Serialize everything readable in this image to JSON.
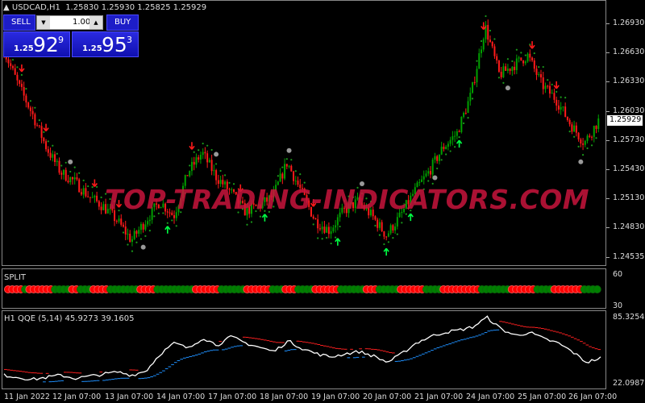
{
  "header": {
    "symbol": "USDCAD,H1",
    "ohlc": "1.25830 1.25930 1.25825 1.25929"
  },
  "trade_panel": {
    "sell_label": "SELL",
    "buy_label": "BUY",
    "lot": "1.00",
    "sell_prefix": "1.25",
    "sell_big": "92",
    "sell_small": "9",
    "buy_prefix": "1.25",
    "buy_big": "95",
    "buy_small": "3"
  },
  "watermark": "TOP-TRADING-INDICATORS.COM",
  "price_axis": [
    "1.26930",
    "1.26630",
    "1.26330",
    "1.26030",
    "1.25730",
    "1.25430",
    "1.25130",
    "1.24830",
    "1.24535"
  ],
  "current_price": "1.25929",
  "split": {
    "label": "SPLIT",
    "axis": [
      "60",
      "30"
    ],
    "sequence": "rrrrgrrrrrrggggrrgggrrrrgggggggrrrrgggggggggrrrrrrggggggrrrrrrgggrrrggggrrrrrrggggggrrrgggggrrrrrrggggrrrrrrrrrgggggggrrrrrrggggrrrrrrrgggg",
    "colors": {
      "red": "#ff0000",
      "green": "#008000"
    }
  },
  "qqe": {
    "label": "H1  QQE (5,14) 45.9273 39.1605",
    "axis": [
      "85.3254",
      "22.0987"
    ],
    "colors": {
      "main": "#ffffff",
      "signal_up": "#ff2020",
      "signal_down": "#1e90ff"
    }
  },
  "time_axis": [
    "11 Jan 2022",
    "12 Jan 07:00",
    "13 Jan 07:00",
    "14 Jan 07:00",
    "17 Jan 07:00",
    "18 Jan 07:00",
    "19 Jan 07:00",
    "20 Jan 07:00",
    "21 Jan 07:00",
    "24 Jan 07:00",
    "25 Jan 07:00",
    "26 Jan 07:00"
  ],
  "chart_data": {
    "type": "candlestick",
    "symbol": "USDCAD",
    "timeframe": "H1",
    "ylim": [
      1.2442,
      1.2712
    ],
    "closes": [
      1.2665,
      1.263,
      1.26,
      1.2565,
      1.254,
      1.253,
      1.2515,
      1.2505,
      1.249,
      1.247,
      1.249,
      1.251,
      1.2495,
      1.254,
      1.256,
      1.2535,
      1.252,
      1.25,
      1.2505,
      1.2515,
      1.255,
      1.252,
      1.249,
      1.248,
      1.25,
      1.251,
      1.2495,
      1.2475,
      1.2495,
      1.252,
      1.254,
      1.2565,
      1.258,
      1.262,
      1.269,
      1.264,
      1.265,
      1.266,
      1.263,
      1.2615,
      1.259,
      1.257,
      1.2593
    ],
    "qqe_main": [
      30,
      28,
      26,
      28,
      30,
      27,
      29,
      31,
      33,
      30,
      34,
      50,
      60,
      55,
      65,
      58,
      66,
      60,
      56,
      52,
      62,
      55,
      50,
      47,
      50,
      52,
      48,
      42,
      50,
      60,
      66,
      70,
      72,
      75,
      84,
      73,
      67,
      70,
      64,
      60,
      52,
      42,
      46
    ]
  }
}
